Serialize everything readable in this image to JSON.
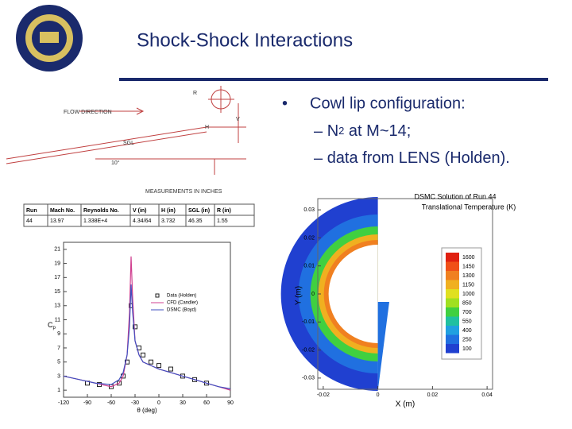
{
  "header": {
    "title": "Shock-Shock Interactions"
  },
  "bullets": {
    "main": "Cowl lip configuration:",
    "sub1": [
      "N",
      "2",
      " at M~14;"
    ],
    "sub2": "data from LENS (Holden)."
  },
  "schematic": {
    "flow": "FLOW DIRECTION",
    "sgl": "SGL",
    "note": "MEASUREMENTS IN INCHES",
    "r": "R",
    "h": "H",
    "v": "V",
    "angle": "10°"
  },
  "table": {
    "header": [
      "Run",
      "Mach No.",
      "Reynolds No.",
      "V (in)",
      "H (in)",
      "SGL (in)",
      "R (in)"
    ],
    "rows": [
      [
        "44",
        "13.97",
        "1.338E+4",
        "4.34/64",
        "3.732",
        "46.35",
        "1.55"
      ]
    ]
  },
  "pressure_chart": {
    "type": "line",
    "xlabel": "θ (deg)",
    "ylabel": [
      "C",
      "p"
    ],
    "xlim": [
      -120,
      90
    ],
    "ylim": [
      0,
      22
    ],
    "xticks": [
      -120,
      -90,
      -60,
      -30,
      0,
      30,
      60,
      90
    ],
    "yticks": [
      1,
      3,
      5,
      7,
      9,
      11,
      13,
      15,
      17,
      19,
      21
    ],
    "series": [
      {
        "name": "Data (Holden)",
        "color": "#222222",
        "marker": "square",
        "x": [
          -90,
          -75,
          -60,
          -50,
          -45,
          -40,
          -35,
          -30,
          -25,
          -20,
          -10,
          0,
          15,
          30,
          45,
          60
        ],
        "values": [
          2,
          1.8,
          1.5,
          2,
          3,
          5,
          13,
          10,
          7,
          6,
          5,
          4.5,
          4,
          3,
          2.5,
          2
        ]
      },
      {
        "name": "CFD (Candler)",
        "color": "#d04090",
        "x": [
          -120,
          -100,
          -80,
          -60,
          -50,
          -45,
          -40,
          -37,
          -35,
          -33,
          -30,
          -25,
          -20,
          -10,
          0,
          15,
          30,
          45,
          60,
          75,
          90
        ],
        "values": [
          3,
          2.5,
          2,
          1.5,
          2,
          3,
          6,
          12,
          20,
          14,
          8,
          6,
          5,
          4.5,
          4,
          3.5,
          3,
          2.5,
          2,
          1.5,
          1
        ]
      },
      {
        "name": "DSMC (Boyd)",
        "color": "#4050c0",
        "x": [
          -120,
          -100,
          -80,
          -60,
          -50,
          -45,
          -40,
          -37,
          -35,
          -33,
          -30,
          -25,
          -20,
          -10,
          0,
          15,
          30,
          45,
          60,
          75,
          90
        ],
        "values": [
          3,
          2.5,
          2,
          1.8,
          2.5,
          3.5,
          6,
          10,
          16,
          12,
          8,
          6,
          5,
          4.5,
          4,
          3.5,
          3,
          2.5,
          2,
          1.5,
          1.2
        ]
      }
    ]
  },
  "contour_chart": {
    "type": "contour",
    "title": "DSMC Solution of Run 44",
    "subtitle": "Translational Temperature (K)",
    "xlabel": "X (m)",
    "ylabel": "Y (m)",
    "xlim": [
      -0.022,
      0.042
    ],
    "ylim": [
      -0.034,
      0.034
    ],
    "xticks": [
      -0.02,
      0,
      0.02,
      0.04
    ],
    "yticks": [
      0.03,
      0.02,
      0.01,
      0,
      -0.01,
      -0.02,
      -0.03
    ],
    "levels": [
      1600,
      1450,
      1300,
      1150,
      1000,
      850,
      700,
      550,
      400,
      250,
      100
    ],
    "colors": [
      "#e02010",
      "#f05018",
      "#f08020",
      "#f0b020",
      "#e0e020",
      "#a0e020",
      "#40d040",
      "#20c0a0",
      "#20a0e0",
      "#2070e0",
      "#2040d0"
    ]
  }
}
